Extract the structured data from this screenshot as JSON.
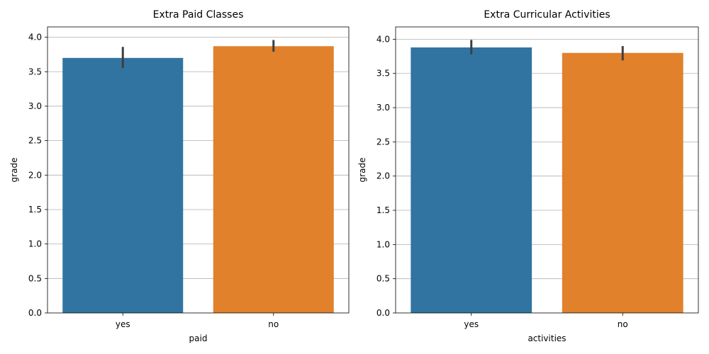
{
  "colors": {
    "bar_yes": "#3274a1",
    "bar_no": "#e1812c",
    "grid": "#b0b0b0",
    "errbar": "#3f3f3f",
    "axis": "#000000"
  },
  "chart_data": [
    {
      "type": "bar",
      "title": "Extra Paid Classes",
      "xlabel": "paid",
      "ylabel": "grade",
      "categories": [
        "yes",
        "no"
      ],
      "values": [
        3.7,
        3.87
      ],
      "error_low": [
        3.55,
        3.79
      ],
      "error_high": [
        3.86,
        3.96
      ],
      "ylim": [
        0,
        4.15
      ],
      "yticks": [
        0.0,
        0.5,
        1.0,
        1.5,
        2.0,
        2.5,
        3.0,
        3.5,
        4.0
      ],
      "ytick_labels": [
        "0.0",
        "0.5",
        "1.0",
        "1.5",
        "2.0",
        "2.5",
        "3.0",
        "3.5",
        "4.0"
      ],
      "grid": "y"
    },
    {
      "type": "bar",
      "title": "Extra Curricular Activities",
      "xlabel": "activities",
      "ylabel": "grade",
      "categories": [
        "yes",
        "no"
      ],
      "values": [
        3.88,
        3.8
      ],
      "error_low": [
        3.78,
        3.69
      ],
      "error_high": [
        3.99,
        3.9
      ],
      "ylim": [
        0,
        4.18
      ],
      "yticks": [
        0.0,
        0.5,
        1.0,
        1.5,
        2.0,
        2.5,
        3.0,
        3.5,
        4.0
      ],
      "ytick_labels": [
        "0.0",
        "0.5",
        "1.0",
        "1.5",
        "2.0",
        "2.5",
        "3.0",
        "3.5",
        "4.0"
      ],
      "grid": "y"
    }
  ]
}
